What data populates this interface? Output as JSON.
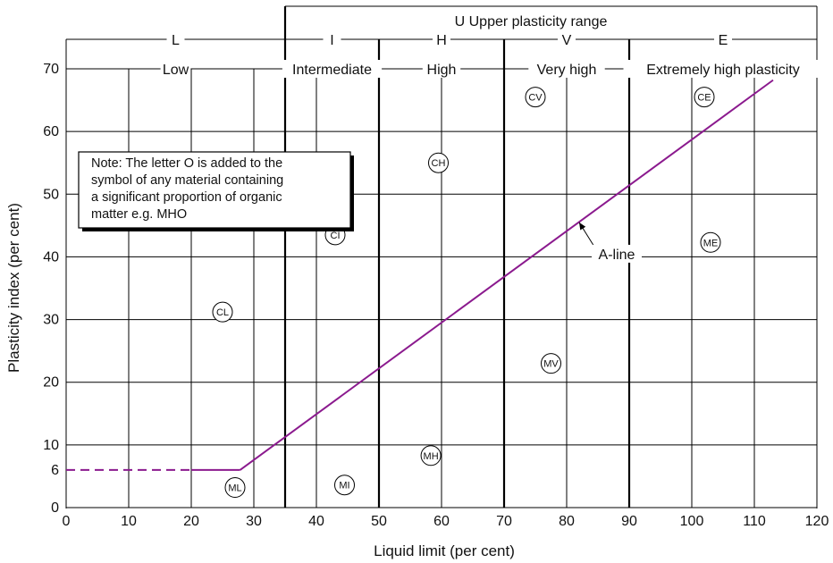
{
  "chart_data": {
    "type": "line",
    "xlabel": "Liquid limit (per cent)",
    "ylabel": "Plasticity index (per cent)",
    "xlim": [
      0,
      120
    ],
    "ylim": [
      0,
      75
    ],
    "x_ticks": [
      0,
      10,
      20,
      30,
      40,
      50,
      60,
      70,
      80,
      90,
      100,
      110,
      120
    ],
    "y_ticks": [
      0,
      6,
      10,
      20,
      30,
      40,
      50,
      60,
      70
    ],
    "grid": true,
    "upper_range_label": "U Upper plasticity range",
    "upper_range_from_x": 35,
    "plasticity_zones": [
      {
        "letter": "L",
        "name": "Low",
        "x_start": 0,
        "x_end": 35
      },
      {
        "letter": "I",
        "name": "Intermediate",
        "x_start": 35,
        "x_end": 50
      },
      {
        "letter": "H",
        "name": "High",
        "x_start": 50,
        "x_end": 70
      },
      {
        "letter": "V",
        "name": "Very high",
        "x_start": 70,
        "x_end": 90
      },
      {
        "letter": "E",
        "name": "Extremely high plasticity",
        "x_start": 90,
        "x_end": 120
      }
    ],
    "series": [
      {
        "name": "A-line",
        "color": "#8b1a8e",
        "points": [
          [
            27.8,
            6
          ],
          [
            113,
            68.2
          ]
        ],
        "dashed_segment": [
          [
            0,
            6
          ],
          [
            20,
            6
          ]
        ],
        "solid_flat_segment": [
          [
            20,
            6
          ],
          [
            27.8,
            6
          ]
        ]
      }
    ],
    "a_line_label": "A-line",
    "a_line_label_pointer": {
      "text_at": [
        88,
        40.5
      ],
      "arrow_to": [
        82,
        45.5
      ]
    },
    "soil_symbols": [
      {
        "label": "CV",
        "x": 75,
        "y": 65.5
      },
      {
        "label": "CE",
        "x": 102,
        "y": 65.5
      },
      {
        "label": "CH",
        "x": 59.5,
        "y": 55
      },
      {
        "label": "CI",
        "x": 43,
        "y": 43.5
      },
      {
        "label": "ME",
        "x": 103,
        "y": 42.3
      },
      {
        "label": "CL",
        "x": 25,
        "y": 31.2
      },
      {
        "label": "MV",
        "x": 77.5,
        "y": 23
      },
      {
        "label": "MH",
        "x": 58.3,
        "y": 8.3
      },
      {
        "label": "MI",
        "x": 44.5,
        "y": 3.6
      },
      {
        "label": "ML",
        "x": 27,
        "y": 3.2
      }
    ],
    "note": [
      "Note: The letter O is added to the",
      "symbol of any material containing",
      "a significant proportion of organic",
      "matter e.g. MHO"
    ]
  },
  "colors": {
    "a_line": "#8b1a8e",
    "grid": "#000000",
    "background": "#ffffff"
  }
}
